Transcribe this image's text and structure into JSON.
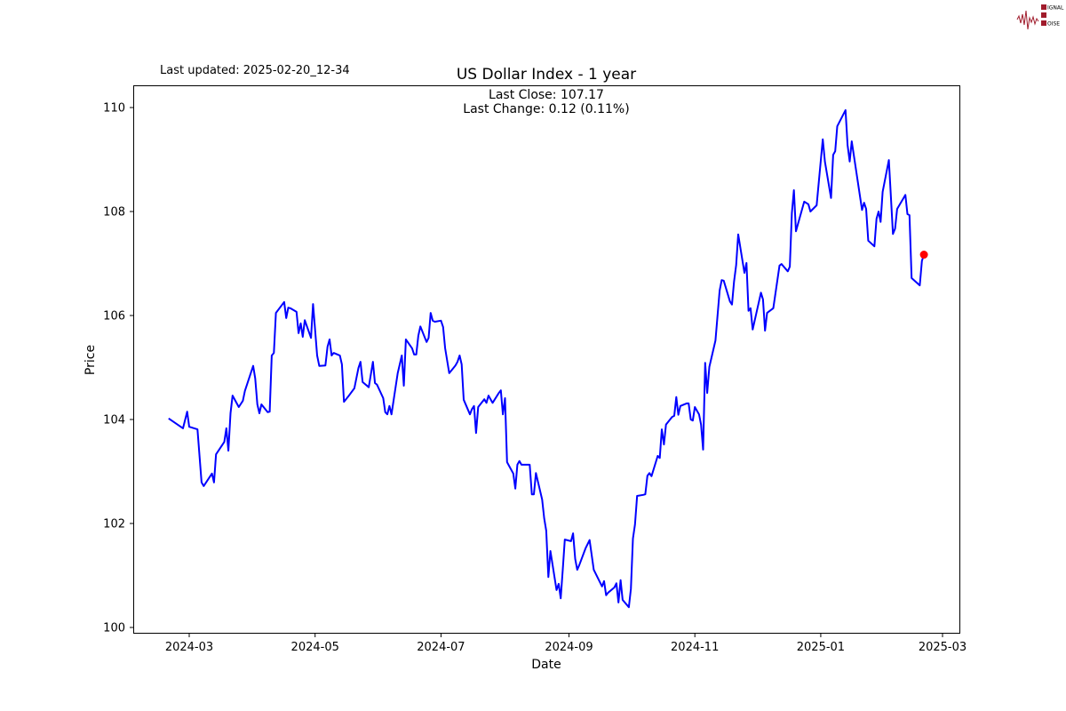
{
  "header": {
    "last_updated": "Last updated: 2025-02-20_12-34",
    "logo_text": "SIGNAL 2 NOISE"
  },
  "chart_data": {
    "type": "line",
    "title": "US Dollar Index - 1 year",
    "xlabel": "Date",
    "ylabel": "Price",
    "annotation_lines": [
      "Last Close: 107.17",
      "Last Change: 0.12 (0.11%)"
    ],
    "x_ticks": [
      {
        "date": "2024-03-01",
        "label": "2024-03"
      },
      {
        "date": "2024-05-01",
        "label": "2024-05"
      },
      {
        "date": "2024-07-01",
        "label": "2024-07"
      },
      {
        "date": "2024-09-01",
        "label": "2024-09"
      },
      {
        "date": "2024-11-01",
        "label": "2024-11"
      },
      {
        "date": "2025-01-01",
        "label": "2025-01"
      },
      {
        "date": "2025-03-01",
        "label": "2025-03"
      }
    ],
    "y_ticks": [
      100,
      102,
      104,
      106,
      108,
      110
    ],
    "ylim": [
      99.9,
      110.43
    ],
    "xlim": [
      "2024-02-02",
      "2025-03-10"
    ],
    "grid": false,
    "line_color": "#0000ff",
    "last_point_color": "#ff0000",
    "last_point": {
      "x": "2025-02-20",
      "y": 107.17
    },
    "series": [
      {
        "x": [
          "2024-02-20",
          "2024-02-27",
          "2024-02-29",
          "2024-03-01",
          "2024-03-05",
          "2024-03-07",
          "2024-03-08",
          "2024-03-12",
          "2024-03-13",
          "2024-03-14",
          "2024-03-18",
          "2024-03-19",
          "2024-03-20",
          "2024-03-21",
          "2024-03-22",
          "2024-03-25",
          "2024-03-27",
          "2024-03-28",
          "2024-04-01",
          "2024-04-02",
          "2024-04-03",
          "2024-04-04",
          "2024-04-05",
          "2024-04-08",
          "2024-04-09",
          "2024-04-10",
          "2024-04-11",
          "2024-04-12",
          "2024-04-16",
          "2024-04-17",
          "2024-04-18",
          "2024-04-19",
          "2024-04-22",
          "2024-04-23",
          "2024-04-24",
          "2024-04-25",
          "2024-04-26",
          "2024-04-29",
          "2024-04-30",
          "2024-05-02",
          "2024-05-03",
          "2024-05-06",
          "2024-05-07",
          "2024-05-08",
          "2024-05-09",
          "2024-05-10",
          "2024-05-13",
          "2024-05-14",
          "2024-05-15",
          "2024-05-17",
          "2024-05-20",
          "2024-05-22",
          "2024-05-23",
          "2024-05-24",
          "2024-05-27",
          "2024-05-29",
          "2024-05-30",
          "2024-05-31",
          "2024-06-03",
          "2024-06-04",
          "2024-06-05",
          "2024-06-06",
          "2024-06-07",
          "2024-06-10",
          "2024-06-11",
          "2024-06-12",
          "2024-06-13",
          "2024-06-14",
          "2024-06-17",
          "2024-06-18",
          "2024-06-19",
          "2024-06-20",
          "2024-06-21",
          "2024-06-24",
          "2024-06-25",
          "2024-06-26",
          "2024-06-27",
          "2024-06-28",
          "2024-07-01",
          "2024-07-02",
          "2024-07-03",
          "2024-07-05",
          "2024-07-08",
          "2024-07-09",
          "2024-07-10",
          "2024-07-11",
          "2024-07-12",
          "2024-07-15",
          "2024-07-16",
          "2024-07-17",
          "2024-07-18",
          "2024-07-19",
          "2024-07-22",
          "2024-07-23",
          "2024-07-24",
          "2024-07-26",
          "2024-07-29",
          "2024-07-30",
          "2024-07-31",
          "2024-08-01",
          "2024-08-02",
          "2024-08-05",
          "2024-08-06",
          "2024-08-07",
          "2024-08-08",
          "2024-08-09",
          "2024-08-12",
          "2024-08-13",
          "2024-08-14",
          "2024-08-15",
          "2024-08-16",
          "2024-08-19",
          "2024-08-20",
          "2024-08-21",
          "2024-08-22",
          "2024-08-23",
          "2024-08-26",
          "2024-08-27",
          "2024-08-28",
          "2024-08-29",
          "2024-08-30",
          "2024-09-02",
          "2024-09-03",
          "2024-09-04",
          "2024-09-05",
          "2024-09-06",
          "2024-09-09",
          "2024-09-11",
          "2024-09-13",
          "2024-09-17",
          "2024-09-18",
          "2024-09-19",
          "2024-09-20",
          "2024-09-23",
          "2024-09-24",
          "2024-09-25",
          "2024-09-26",
          "2024-09-27",
          "2024-09-30",
          "2024-10-01",
          "2024-10-02",
          "2024-10-03",
          "2024-10-04",
          "2024-10-07",
          "2024-10-08",
          "2024-10-09",
          "2024-10-10",
          "2024-10-11",
          "2024-10-14",
          "2024-10-15",
          "2024-10-16",
          "2024-10-17",
          "2024-10-18",
          "2024-10-21",
          "2024-10-22",
          "2024-10-23",
          "2024-10-24",
          "2024-10-25",
          "2024-10-28",
          "2024-10-29",
          "2024-10-30",
          "2024-10-31",
          "2024-11-01",
          "2024-11-03",
          "2024-11-04",
          "2024-11-05",
          "2024-11-06",
          "2024-11-07",
          "2024-11-08",
          "2024-11-11",
          "2024-11-13",
          "2024-11-14",
          "2024-11-15",
          "2024-11-18",
          "2024-11-19",
          "2024-11-20",
          "2024-11-21",
          "2024-11-22",
          "2024-11-25",
          "2024-11-26",
          "2024-11-27",
          "2024-11-28",
          "2024-11-29",
          "2024-12-03",
          "2024-12-04",
          "2024-12-05",
          "2024-12-06",
          "2024-12-09",
          "2024-12-12",
          "2024-12-13",
          "2024-12-16",
          "2024-12-17",
          "2024-12-18",
          "2024-12-19",
          "2024-12-20",
          "2024-12-24",
          "2024-12-26",
          "2024-12-27",
          "2024-12-30",
          "2025-01-02",
          "2025-01-03",
          "2025-01-06",
          "2025-01-07",
          "2025-01-08",
          "2025-01-09",
          "2025-01-13",
          "2025-01-14",
          "2025-01-15",
          "2025-01-16",
          "2025-01-21",
          "2025-01-22",
          "2025-01-23",
          "2025-01-24",
          "2025-01-27",
          "2025-01-28",
          "2025-01-29",
          "2025-01-30",
          "2025-01-31",
          "2025-02-03",
          "2025-02-05",
          "2025-02-06",
          "2025-02-07",
          "2025-02-11",
          "2025-02-12",
          "2025-02-13",
          "2025-02-14",
          "2025-02-18",
          "2025-02-19",
          "2025-02-20"
        ],
        "y": [
          104.02,
          103.83,
          104.15,
          103.86,
          103.81,
          102.79,
          102.72,
          102.96,
          102.79,
          103.33,
          103.57,
          103.83,
          103.4,
          104.12,
          104.46,
          104.24,
          104.36,
          104.55,
          105.03,
          104.79,
          104.29,
          104.12,
          104.29,
          104.14,
          104.15,
          105.23,
          105.28,
          106.05,
          106.26,
          105.95,
          106.15,
          106.14,
          106.07,
          105.66,
          105.85,
          105.59,
          105.91,
          105.57,
          106.22,
          105.23,
          105.03,
          105.04,
          105.4,
          105.54,
          105.23,
          105.28,
          105.23,
          105.06,
          104.34,
          104.44,
          104.6,
          104.99,
          105.11,
          104.72,
          104.62,
          105.11,
          104.7,
          104.67,
          104.41,
          104.14,
          104.1,
          104.26,
          104.1,
          104.89,
          105.06,
          105.23,
          104.65,
          105.54,
          105.37,
          105.25,
          105.25,
          105.61,
          105.79,
          105.49,
          105.57,
          106.05,
          105.9,
          105.88,
          105.9,
          105.78,
          105.37,
          104.89,
          105.04,
          105.11,
          105.23,
          105.06,
          104.38,
          104.1,
          104.2,
          104.26,
          103.74,
          104.24,
          104.39,
          104.32,
          104.46,
          104.32,
          104.51,
          104.56,
          104.1,
          104.41,
          103.18,
          102.96,
          102.67,
          103.13,
          103.2,
          103.13,
          103.13,
          103.13,
          102.56,
          102.56,
          102.97,
          102.46,
          102.1,
          101.86,
          100.97,
          101.47,
          100.72,
          100.84,
          100.56,
          101.11,
          101.69,
          101.66,
          101.81,
          101.32,
          101.11,
          101.2,
          101.52,
          101.68,
          101.11,
          100.79,
          100.89,
          100.62,
          100.67,
          100.77,
          100.85,
          100.48,
          100.91,
          100.53,
          100.39,
          100.74,
          101.71,
          101.98,
          102.53,
          102.55,
          102.56,
          102.92,
          102.97,
          102.91,
          103.3,
          103.26,
          103.81,
          103.52,
          103.9,
          104.05,
          104.07,
          104.43,
          104.09,
          104.26,
          104.31,
          104.31,
          104.0,
          103.98,
          104.24,
          104.1,
          103.9,
          103.42,
          105.09,
          104.51,
          105.01,
          105.52,
          106.48,
          106.68,
          106.67,
          106.27,
          106.21,
          106.65,
          106.97,
          107.56,
          106.82,
          107.01,
          106.09,
          106.14,
          105.73,
          106.44,
          106.31,
          105.71,
          106.05,
          106.14,
          106.96,
          106.99,
          106.85,
          106.94,
          107.97,
          108.41,
          107.62,
          108.19,
          108.14,
          108.0,
          108.12,
          109.39,
          108.96,
          108.26,
          109.09,
          109.16,
          109.64,
          109.95,
          109.28,
          108.96,
          109.35,
          108.03,
          108.17,
          108.05,
          107.44,
          107.33,
          107.86,
          108.0,
          107.8,
          108.38,
          108.99,
          107.57,
          107.67,
          108.05,
          108.32,
          107.95,
          107.93,
          106.72,
          106.58,
          107.05,
          107.17
        ]
      }
    ]
  }
}
